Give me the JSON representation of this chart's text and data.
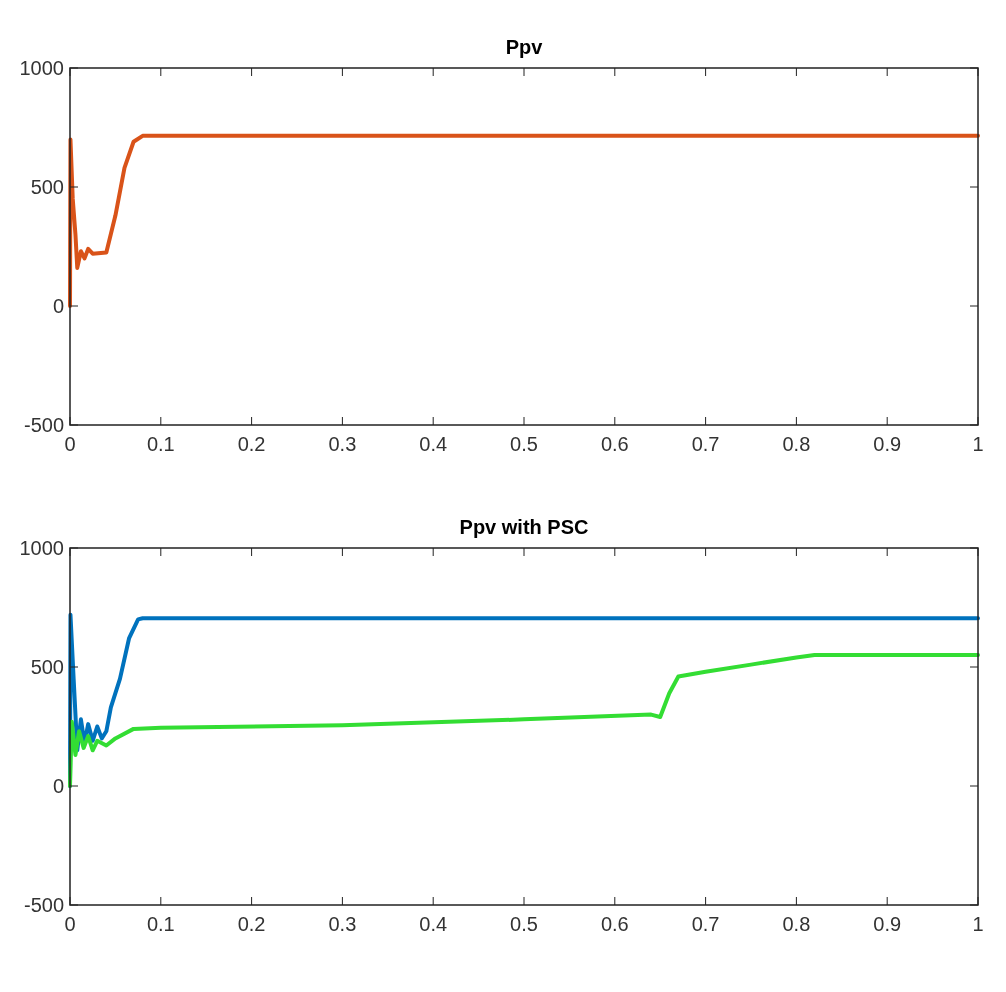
{
  "chart_data": [
    {
      "type": "line",
      "title": "Ppv",
      "xlim": [
        0,
        1
      ],
      "ylim": [
        -500,
        1000
      ],
      "xticks": [
        0,
        0.1,
        0.2,
        0.3,
        0.4,
        0.5,
        0.6,
        0.7,
        0.8,
        0.9,
        1
      ],
      "yticks": [
        -500,
        0,
        500,
        1000
      ],
      "grid": false,
      "series": [
        {
          "color": "#d95319",
          "x": [
            0,
            0.0005,
            0.003,
            0.006,
            0.008,
            0.012,
            0.016,
            0.02,
            0.025,
            0.04,
            0.05,
            0.06,
            0.07,
            0.08,
            1
          ],
          "values": [
            0,
            700,
            450,
            300,
            160,
            230,
            200,
            240,
            220,
            225,
            380,
            580,
            690,
            715,
            715
          ]
        }
      ]
    },
    {
      "type": "line",
      "title": "Ppv with PSC",
      "xlim": [
        0,
        1
      ],
      "ylim": [
        -500,
        1000
      ],
      "xticks": [
        0,
        0.1,
        0.2,
        0.3,
        0.4,
        0.5,
        0.6,
        0.7,
        0.8,
        0.9,
        1
      ],
      "yticks": [
        -500,
        0,
        500,
        1000
      ],
      "grid": false,
      "series": [
        {
          "color": "#0072bd",
          "x": [
            0,
            0.0005,
            0.004,
            0.008,
            0.012,
            0.016,
            0.02,
            0.025,
            0.03,
            0.035,
            0.04,
            0.045,
            0.055,
            0.065,
            0.075,
            0.08,
            1
          ],
          "values": [
            0,
            720,
            450,
            150,
            280,
            180,
            260,
            190,
            250,
            200,
            230,
            330,
            450,
            620,
            700,
            705,
            705
          ]
        },
        {
          "color": "#33dd33",
          "x": [
            0,
            0.002,
            0.006,
            0.01,
            0.015,
            0.02,
            0.025,
            0.03,
            0.04,
            0.05,
            0.07,
            0.1,
            0.3,
            0.5,
            0.64,
            0.65,
            0.66,
            0.67,
            0.7,
            0.75,
            0.8,
            0.82,
            1
          ],
          "values": [
            0,
            270,
            130,
            230,
            160,
            210,
            150,
            190,
            170,
            200,
            240,
            245,
            255,
            280,
            300,
            290,
            390,
            460,
            480,
            510,
            540,
            550,
            550
          ]
        }
      ]
    }
  ]
}
